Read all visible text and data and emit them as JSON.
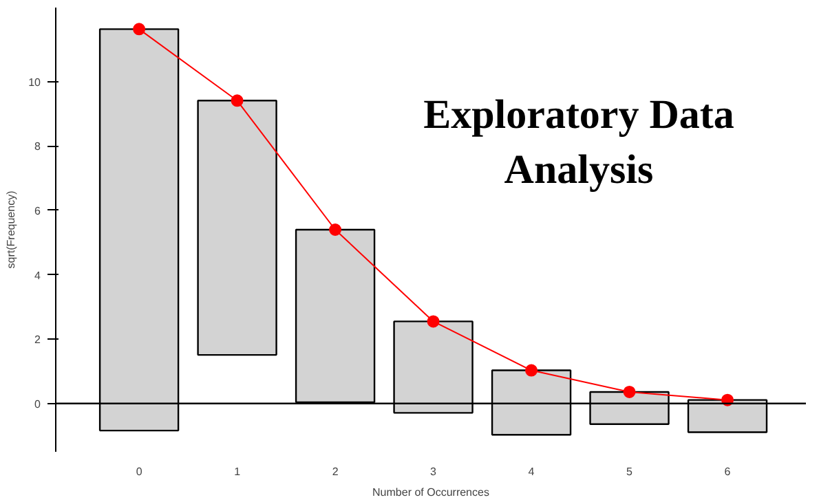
{
  "chart_data": {
    "type": "bar",
    "title": "Exploratory Data Analysis",
    "xlabel": "Number of Occurrences",
    "ylabel": "sqrt(Frequency)",
    "categories": [
      "0",
      "1",
      "2",
      "3",
      "4",
      "5",
      "6"
    ],
    "series": [
      {
        "color": "#d3d3d3",
        "base": [
          -0.84,
          1.51,
          0.04,
          -0.29,
          -0.97,
          -0.64,
          -0.89
        ],
        "values": [
          12.47,
          7.9,
          5.36,
          2.84,
          2.0,
          1.0,
          1.0
        ]
      },
      {
        "type": "line",
        "color": "#ff0000",
        "values": [
          11.63,
          9.41,
          5.4,
          2.55,
          1.03,
          0.36,
          0.11
        ]
      }
    ],
    "ylim": [
      -1.5,
      12.3
    ],
    "yticks": [
      0,
      2,
      4,
      6,
      8,
      10
    ],
    "grid": false,
    "marker": "circle",
    "line_style": "solid",
    "ref_lines": [
      {
        "axis": "y",
        "value": 0,
        "color": "#000000"
      }
    ]
  }
}
